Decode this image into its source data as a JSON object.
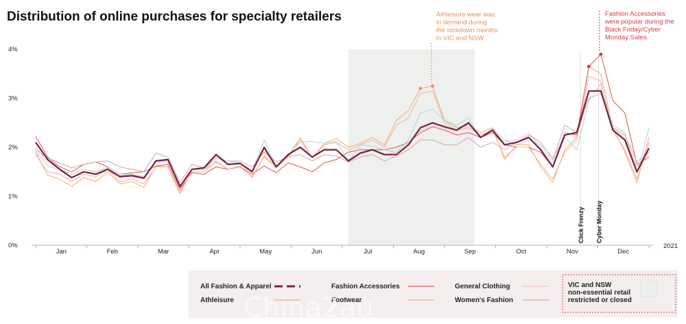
{
  "chart_data": {
    "type": "line",
    "title": "Distribution of online purchases for specialty retailers",
    "ylim": [
      0,
      4
    ],
    "yticks": [
      "0%",
      "1%",
      "2%",
      "3%",
      "4%"
    ],
    "x_tick_labels": [
      "Jan",
      "Feb",
      "Mar",
      "Apr",
      "May",
      "Jun",
      "Jul",
      "Aug",
      "Sep",
      "Oct",
      "Nov",
      "Dec"
    ],
    "year_label": "2021",
    "x": [
      1,
      2,
      3,
      4,
      5,
      6,
      7,
      8,
      9,
      10,
      11,
      12,
      13,
      14,
      15,
      16,
      17,
      18,
      19,
      20,
      21,
      22,
      23,
      24,
      25,
      26,
      27,
      28,
      29,
      30,
      31,
      32,
      33,
      34,
      35,
      36,
      37,
      38,
      39,
      40,
      41,
      42,
      43,
      44,
      45,
      46,
      47,
      48,
      49,
      50,
      51,
      52
    ],
    "lockdown_period": {
      "from": 27,
      "to": 37.5,
      "label": "VIC and NSW non-essential retail restricted or closed",
      "color": "#eef0ee"
    },
    "series": [
      {
        "name": "All Fashion & Apparel",
        "color": "#7a1f3d",
        "width": 2.2,
        "values": [
          2.1,
          1.75,
          1.55,
          1.38,
          1.5,
          1.45,
          1.55,
          1.4,
          1.42,
          1.37,
          1.72,
          1.75,
          1.2,
          1.55,
          1.58,
          1.85,
          1.65,
          1.67,
          1.5,
          2.0,
          1.6,
          1.85,
          2.0,
          1.8,
          1.95,
          1.95,
          1.72,
          1.88,
          1.95,
          1.85,
          1.85,
          2.05,
          2.4,
          2.5,
          2.42,
          2.35,
          2.5,
          2.2,
          2.35,
          2.05,
          2.1,
          2.2,
          1.95,
          1.6,
          2.25,
          2.3,
          3.15,
          3.15,
          2.35,
          2.15,
          1.5,
          1.98
        ]
      },
      {
        "name": "Athleisure",
        "color": "#f4a878",
        "width": 1,
        "values": [
          1.9,
          1.43,
          1.35,
          1.2,
          1.38,
          1.3,
          1.5,
          1.25,
          1.3,
          1.18,
          1.62,
          1.6,
          1.05,
          1.55,
          1.55,
          1.7,
          1.55,
          1.62,
          1.38,
          1.82,
          1.62,
          1.82,
          2.2,
          1.78,
          2.08,
          2.18,
          2.0,
          2.08,
          2.2,
          2.05,
          2.55,
          2.75,
          3.2,
          3.25,
          2.55,
          2.4,
          2.45,
          2.3,
          2.4,
          1.75,
          2.05,
          2.05,
          1.6,
          1.28,
          1.95,
          2.2,
          3.65,
          3.5,
          2.4,
          1.9,
          1.28,
          2.2
        ]
      },
      {
        "name": "Fashion Accessories",
        "color": "#e05252",
        "width": 1,
        "values": [
          2.22,
          1.8,
          1.6,
          1.5,
          1.65,
          1.7,
          1.6,
          1.45,
          1.48,
          1.5,
          1.62,
          1.65,
          1.15,
          1.48,
          1.45,
          1.6,
          1.55,
          1.6,
          1.45,
          1.62,
          1.48,
          1.68,
          1.6,
          1.5,
          1.68,
          1.75,
          1.9,
          1.95,
          1.95,
          1.95,
          2.0,
          2.1,
          2.3,
          2.42,
          2.35,
          2.25,
          2.3,
          2.2,
          2.3,
          2.05,
          2.0,
          2.0,
          1.9,
          1.6,
          2.3,
          2.25,
          3.65,
          3.9,
          2.95,
          2.7,
          1.65,
          1.8
        ]
      },
      {
        "name": "Footwear",
        "color": "#f4b08a",
        "width": 1,
        "values": [
          1.85,
          1.5,
          1.45,
          1.3,
          1.45,
          1.4,
          1.55,
          1.3,
          1.35,
          1.25,
          1.6,
          1.6,
          1.1,
          1.5,
          1.5,
          1.72,
          1.55,
          1.6,
          1.4,
          1.8,
          1.58,
          1.8,
          2.15,
          1.78,
          2.05,
          2.1,
          1.95,
          2.05,
          2.15,
          2.0,
          2.45,
          2.6,
          3.1,
          3.15,
          2.5,
          2.35,
          2.4,
          2.25,
          2.35,
          1.8,
          2.0,
          2.0,
          1.65,
          1.35,
          1.9,
          2.15,
          3.45,
          3.35,
          2.35,
          1.95,
          1.35,
          2.1
        ]
      },
      {
        "name": "General Clothing",
        "color": "#f0c4c4",
        "width": 1,
        "values": [
          2.0,
          1.7,
          1.55,
          1.45,
          1.55,
          1.5,
          1.6,
          1.45,
          1.45,
          1.4,
          1.7,
          1.7,
          1.2,
          1.55,
          1.55,
          1.8,
          1.65,
          1.68,
          1.5,
          1.95,
          1.6,
          1.85,
          2.0,
          1.85,
          1.95,
          1.95,
          1.75,
          1.9,
          1.95,
          1.85,
          1.9,
          2.1,
          2.35,
          2.45,
          2.4,
          2.3,
          2.45,
          2.2,
          2.35,
          2.1,
          2.15,
          2.3,
          2.0,
          1.7,
          2.3,
          2.2,
          3.1,
          3.2,
          2.4,
          2.2,
          1.6,
          1.95
        ]
      },
      {
        "name": "Women's Fashion",
        "color": "#cfa6aa",
        "width": 1,
        "values": [
          1.95,
          1.78,
          1.68,
          1.58,
          1.65,
          1.7,
          1.72,
          1.6,
          1.55,
          1.5,
          1.88,
          1.8,
          1.28,
          1.65,
          1.58,
          1.78,
          1.72,
          1.72,
          1.6,
          1.9,
          1.7,
          1.8,
          1.85,
          1.72,
          1.85,
          1.82,
          1.7,
          1.8,
          1.85,
          1.72,
          1.82,
          1.95,
          2.15,
          2.15,
          2.05,
          2.05,
          2.2,
          2.0,
          2.1,
          1.95,
          2.1,
          2.25,
          2.1,
          1.75,
          2.45,
          2.3,
          3.0,
          3.1,
          2.4,
          2.25,
          1.7,
          1.9
        ]
      },
      {
        "name": "",
        "color": "#a9d8d2",
        "width": 1,
        "values": [
          1.92,
          1.62,
          1.55,
          1.45,
          1.55,
          1.5,
          1.58,
          1.42,
          1.45,
          1.35,
          1.72,
          1.72,
          1.18,
          1.55,
          1.55,
          1.78,
          1.72,
          1.68,
          1.52,
          2.15,
          1.62,
          1.85,
          2.1,
          2.12,
          2.08,
          2.12,
          1.7,
          2.05,
          2.02,
          1.95,
          1.9,
          2.15,
          2.7,
          2.78,
          2.55,
          2.45,
          2.6,
          2.2,
          2.4,
          2.15,
          2.05,
          2.15,
          2.05,
          1.8,
          2.2,
          1.95,
          2.95,
          3.3,
          2.45,
          2.3,
          1.45,
          2.4
        ]
      }
    ],
    "highlights": [
      {
        "series": "Athleisure",
        "points": [
          [
            33,
            3.2
          ],
          [
            34,
            3.25
          ]
        ]
      },
      {
        "series": "Fashion Accessories",
        "points": [
          [
            47,
            3.65
          ],
          [
            48,
            3.9
          ]
        ]
      }
    ],
    "annotations": [
      {
        "text": "Athleisure wear was in demand during the lockdown months in VIC and NSW.",
        "lines": [
          "Athleisure wear was",
          "in demand during",
          "the lockdown months",
          "in VIC and NSW."
        ],
        "color": "#e8925a"
      },
      {
        "text": "Fashion Accessories were popular during the Black Friday/Cyber Monday Sales.",
        "lines": [
          "Fashion Accessories",
          "were popular during the",
          "Black Friday/Cyber",
          "Monday Sales."
        ],
        "color": "#d83a43"
      }
    ],
    "event_lines": [
      {
        "label": "Click Frenzy",
        "x": 46.3
      },
      {
        "label": "Cyber Monday",
        "x": 47.8
      }
    ],
    "legend": {
      "placement": "bottom",
      "items": [
        {
          "label": "All Fashion & Apparel",
          "color": "#7a1f3d",
          "style": "dashed-thick"
        },
        {
          "label": "Athleisure",
          "color": "#f4a878",
          "style": "line"
        },
        {
          "label": "Fashion Accessories",
          "color": "#e05252",
          "style": "line"
        },
        {
          "label": "Footwear",
          "color": "#f4b08a",
          "style": "line"
        },
        {
          "label": "General Clothing",
          "color": "#f0c4c4",
          "style": "line"
        },
        {
          "label": "Women's Fashion",
          "color": "#cfa6aa",
          "style": "line"
        }
      ],
      "lockdown_label_lines": [
        "VIC and NSW",
        "non-essential retail",
        "restricted or closed"
      ]
    },
    "watermark": "Chinа2au",
    "grid": false
  }
}
